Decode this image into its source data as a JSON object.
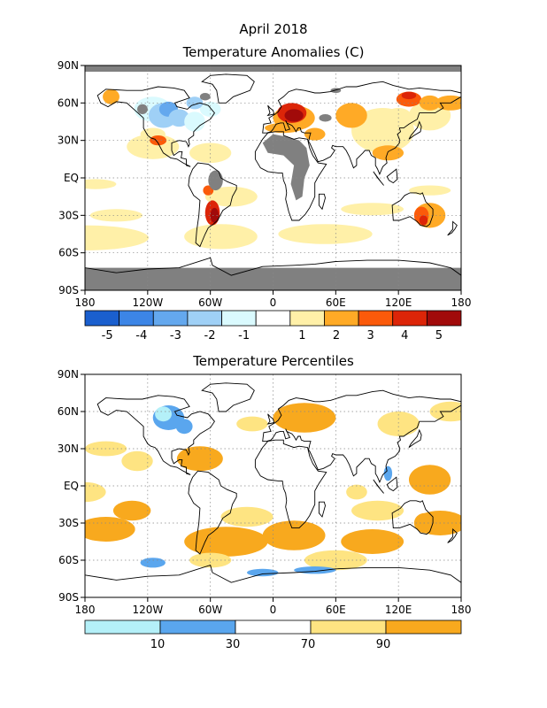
{
  "page": {
    "title_line1": "April 2018"
  },
  "chart_data": [
    {
      "type": "heatmap",
      "title": "Temperature Anomalies (C)",
      "x_ticks": [
        "180",
        "120W",
        "60W",
        "0",
        "60E",
        "120E",
        "180"
      ],
      "y_ticks": [
        "90N",
        "60N",
        "30N",
        "EQ",
        "30S",
        "60S",
        "90S"
      ],
      "xlim": [
        -180,
        180
      ],
      "ylim": [
        -90,
        90
      ],
      "grid": true,
      "missing_color": "#808080",
      "colorbar": {
        "labels": [
          "-5",
          "-4",
          "-3",
          "-2",
          "-1",
          "1",
          "2",
          "3",
          "4",
          "5"
        ],
        "colors": [
          "#1a5fce",
          "#3c85e6",
          "#64a8ee",
          "#9fd0f6",
          "#dafafe",
          "#ffffff",
          "#fff0a8",
          "#ffaa26",
          "#fb5a0a",
          "#dc2508",
          "#a10a0a"
        ]
      },
      "regions": [
        {
          "value": 5,
          "lon": 15,
          "lat": 50
        },
        {
          "value": 4,
          "lon": 130,
          "lat": 66
        },
        {
          "value": 4,
          "lon": -55,
          "lat": -30
        },
        {
          "value": 3,
          "lon": 145,
          "lat": -33
        },
        {
          "value": 3,
          "lon": -60,
          "lat": -10
        },
        {
          "value": 2,
          "lon": 105,
          "lat": 40
        },
        {
          "value": 2,
          "lon": -160,
          "lat": -30
        },
        {
          "value": -4,
          "lon": -105,
          "lat": 55
        },
        {
          "value": -2,
          "lon": -75,
          "lat": 45
        },
        {
          "value": -1,
          "lon": -118,
          "lat": 38
        }
      ]
    },
    {
      "type": "heatmap",
      "title": "Temperature Percentiles",
      "x_ticks": [
        "180",
        "120W",
        "60W",
        "0",
        "60E",
        "120E",
        "180"
      ],
      "y_ticks": [
        "90N",
        "60N",
        "30N",
        "EQ",
        "30S",
        "60S",
        "90S"
      ],
      "xlim": [
        -180,
        180
      ],
      "ylim": [
        -90,
        90
      ],
      "grid": true,
      "colorbar": {
        "labels": [
          "10",
          "30",
          "70",
          "90"
        ],
        "colors": [
          "#b4f0f8",
          "#5aa6ee",
          "#ffffff",
          "#fee482",
          "#f8a91e"
        ]
      },
      "regions": [
        {
          "value": 90,
          "lon": -140,
          "lat": -30
        },
        {
          "value": 90,
          "lon": 20,
          "lat": -42
        },
        {
          "value": 90,
          "lon": 95,
          "lat": -48
        },
        {
          "value": 90,
          "lon": -75,
          "lat": 20
        },
        {
          "value": 90,
          "lon": 30,
          "lat": 52
        },
        {
          "value": 90,
          "lon": 150,
          "lat": 5
        },
        {
          "value": 70,
          "lon": 100,
          "lat": 45
        },
        {
          "value": 70,
          "lon": -30,
          "lat": -20
        },
        {
          "value": 10,
          "lon": -100,
          "lat": 55
        },
        {
          "value": 10,
          "lon": -115,
          "lat": -62
        },
        {
          "value": 10,
          "lon": 110,
          "lat": 10
        }
      ]
    }
  ]
}
